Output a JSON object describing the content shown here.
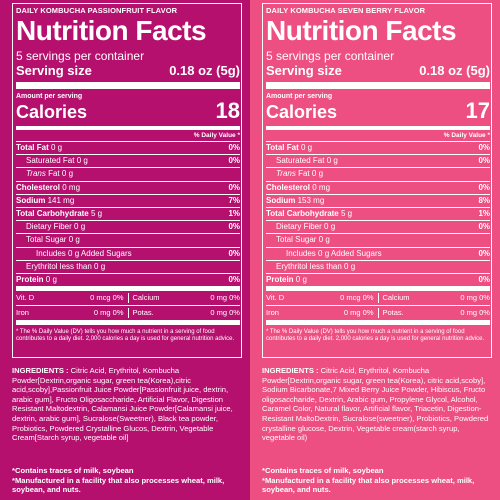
{
  "labels": [
    {
      "flavor": "DAILY KOMBUCHA PASSIONFRUIT FLAVOR",
      "title": "Nutrition Facts",
      "servings": "5 servings per container",
      "serving_size_label": "Serving size",
      "serving_size_value": "0.18 oz (5g)",
      "amount_per_serving": "Amount per serving",
      "calories_label": "Calories",
      "calories_value": "18",
      "dv_header": "% Daily Value *",
      "total_fat": "Total Fat",
      "total_fat_amt": "0 g",
      "total_fat_pct": "0%",
      "sat_fat": "Saturated Fat",
      "sat_fat_amt": "0 g",
      "sat_fat_pct": "0%",
      "trans_fat": "Trans",
      "trans_fat_word": "Fat",
      "trans_fat_amt": "0 g",
      "cholesterol": "Cholesterol",
      "cholesterol_amt": "0 mg",
      "cholesterol_pct": "0%",
      "sodium": "Sodium",
      "sodium_amt": "141 mg",
      "sodium_pct": "7%",
      "carb": "Total Carbohydrate",
      "carb_amt": "5 g",
      "carb_pct": "1%",
      "fiber": "Dietary Fiber",
      "fiber_amt": "0 g",
      "fiber_pct": "0%",
      "sugar": "Total Sugar",
      "sugar_amt": "0 g",
      "added_sugar": "Includes  0 g  Added Sugars",
      "added_sugar_amt": "0 g",
      "added_sugar_pct": "0%",
      "erythritol": "Erythritol less than",
      "erythritol_amt": "0 g",
      "protein": "Protein",
      "protein_amt": "0 g",
      "protein_pct": "0%",
      "vit_d": "Vit. D",
      "vit_d_val": "0 mcg 0%",
      "calcium": "Calcium",
      "calcium_val": "0 mg 0%",
      "iron": "Iron",
      "iron_val": "0 mg 0%",
      "potas": "Potas.",
      "potas_val": "0 mg 0%",
      "footnote": "* The % Daily Value (DV) tells you how much a nutrient in a serving of food contributes to a daily diet. 2,000 calories a day is used for general nutrition advice.",
      "ingredients_label": "INGREDIENTS :",
      "ingredients_text": "Citric Acid, Erythritol, Kombucha Powder[Dextrin,organic sugar, green tea(Korea),citric acid,scoby],Passionfruit Juice Powder[Passionfruit juice, dextrin, arabic gum], Fructo Oligosaccharide, Artificial Flavor, Digestion Resistant Maltodextrin, Calamansi Juice Powder[Calamansi juice, dextrin, arabic gum], Sucralose(Sweetner), Black tea powder, Probiotics, Powdered Crystalline Glucos, Dextrin, Vegetable Cream[Starch syrup, vegetable oil]",
      "contains_1": "*Contains traces of milk, soybean",
      "contains_2": "*Manufactured in a facility that also processes wheat, milk, soybean, and nuts."
    },
    {
      "flavor": "DAILY KOMBUCHA SEVEN BERRY FLAVOR",
      "title": "Nutrition Facts",
      "servings": "5 servings per container",
      "serving_size_label": "Serving size",
      "serving_size_value": "0.18 oz (5g)",
      "amount_per_serving": "Amount per serving",
      "calories_label": "Calories",
      "calories_value": "17",
      "dv_header": "% Daily Value *",
      "total_fat": "Total Fat",
      "total_fat_amt": "0 g",
      "total_fat_pct": "0%",
      "sat_fat": "Saturated Fat",
      "sat_fat_amt": "0 g",
      "sat_fat_pct": "0%",
      "trans_fat": "Trans",
      "trans_fat_word": "Fat",
      "trans_fat_amt": "0 g",
      "cholesterol": "Cholesterol",
      "cholesterol_amt": "0 mg",
      "cholesterol_pct": "0%",
      "sodium": "Sodium",
      "sodium_amt": "153 mg",
      "sodium_pct": "8%",
      "carb": "Total Carbohydrate",
      "carb_amt": "5 g",
      "carb_pct": "1%",
      "fiber": "Dietary Fiber",
      "fiber_amt": "0 g",
      "fiber_pct": "0%",
      "sugar": "Total Sugar",
      "sugar_amt": "0 g",
      "added_sugar": "Includes  0 g  Added Sugars",
      "added_sugar_amt": "0 g",
      "added_sugar_pct": "0%",
      "erythritol": "Erythritol less than",
      "erythritol_amt": "0 g",
      "protein": "Protein",
      "protein_amt": "0 g",
      "protein_pct": "0%",
      "vit_d": "Vit. D",
      "vit_d_val": "0 mcg 0%",
      "calcium": "Calcium",
      "calcium_val": "0 mg 0%",
      "iron": "Iron",
      "iron_val": "0 mg 0%",
      "potas": "Potas.",
      "potas_val": "0 mg 0%",
      "footnote": "* The % Daily Value (DV) tells you how much a nutrient in a serving of food contributes to a daily diet. 2,000 calories a day is used for general nutrition advice.",
      "ingredients_label": "INGREDIENTS :",
      "ingredients_text": "Citric Acid, Erythritol, Kombucha Powder[Dextrin,organic sugar, green tea(Korea), citric acid,scoby], Sodium Bicarbonate,7 Mixed Berry Juice Powder, Hibiscus, Fructo oligosaccharide, Dextrin, Arabic gum, Propylene Glycol, Alcohol, Caramel Color, Natural flavor, Artificial flavor, Triacetin, Digestion-Resistant MaltoDextrin, Sucralose(sweetner), Probiotics, Powdered crystalline glucose, Dextrin, Vegetable cream(starch syrup, vegetable oil)",
      "contains_1": "*Contains traces of milk, soybean",
      "contains_2": "*Manufactured in a facility that also processes wheat, milk, soybean, and nuts."
    }
  ],
  "colors": {
    "passionfruit_bg": "#b6106f",
    "seven_berry_bg": "#ee4f82",
    "text": "#ffffff"
  }
}
